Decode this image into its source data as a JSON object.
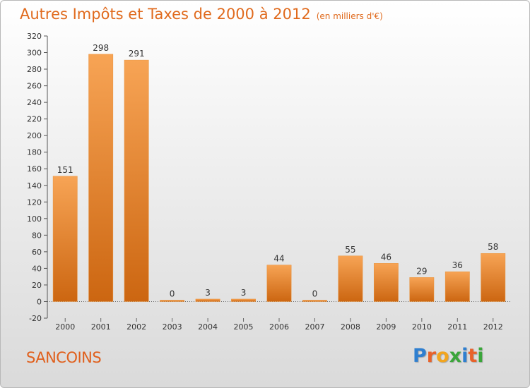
{
  "header": {
    "title": "Autres Impôts et Taxes de 2000 à 2012",
    "unit": "(en milliers d'€)"
  },
  "place_name": "SANCOINS",
  "logo": {
    "letters": [
      "P",
      "r",
      "o",
      "x",
      "i",
      "t",
      "i"
    ],
    "colors": [
      "#2f7fd0",
      "#e8622a",
      "#f2a51e",
      "#3aa63a",
      "#2f7fd0",
      "#e8622a",
      "#3aa63a"
    ]
  },
  "colors": {
    "title": "#e06a1d",
    "bar_top": "#f7a455",
    "bar_bottom": "#cc6611"
  },
  "chart_data": {
    "type": "bar",
    "categories": [
      "2000",
      "2001",
      "2002",
      "2003",
      "2004",
      "2005",
      "2006",
      "2007",
      "2008",
      "2009",
      "2010",
      "2011",
      "2012"
    ],
    "values": [
      151,
      298,
      291,
      0,
      3,
      3,
      44,
      0,
      55,
      46,
      29,
      36,
      58
    ],
    "ylim": [
      -20,
      320
    ],
    "yticks": [
      -20,
      0,
      20,
      40,
      60,
      80,
      100,
      120,
      140,
      160,
      180,
      200,
      220,
      240,
      260,
      280,
      300,
      320
    ],
    "grid": false,
    "legend": "none"
  }
}
